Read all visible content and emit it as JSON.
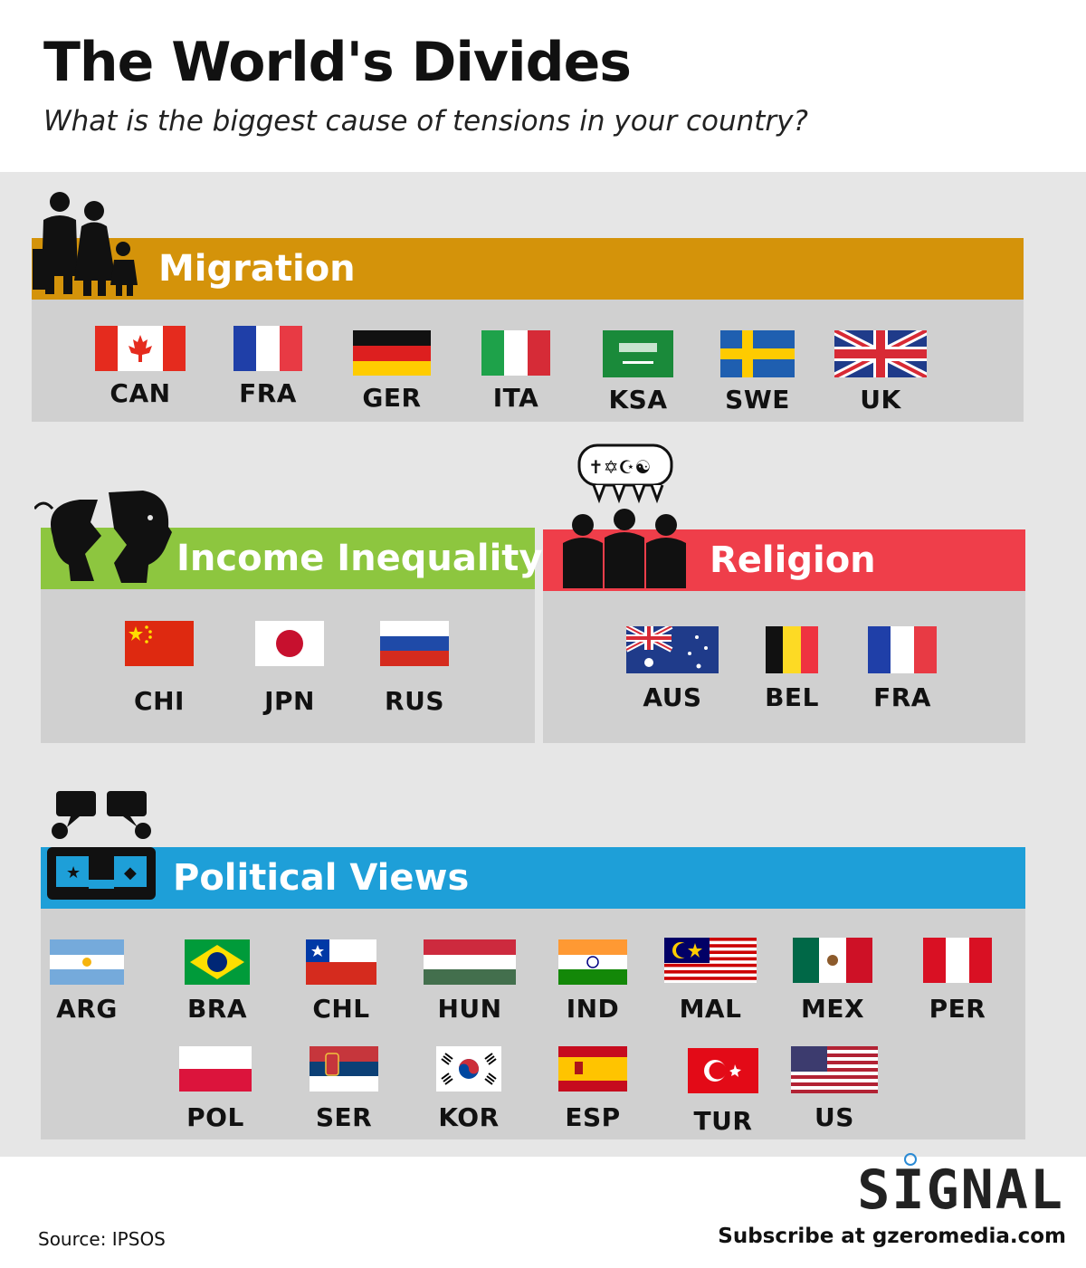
{
  "title": "The World's Divides",
  "subtitle": "What is the biggest cause of tensions in your country?",
  "sections": {
    "migration": {
      "label": "Migration",
      "color": "#d4930a",
      "icon": "family-icon",
      "countries": [
        "CAN",
        "FRA",
        "GER",
        "ITA",
        "KSA",
        "SWE",
        "UK"
      ]
    },
    "income": {
      "label": "Income Inequality",
      "color": "#8dc63f",
      "icon": "broken-piggy-bank-icon",
      "countries": [
        "CHI",
        "JPN",
        "RUS"
      ]
    },
    "religion": {
      "label": "Religion",
      "color": "#ef3e4a",
      "icon": "people-religion-icon",
      "countries": [
        "AUS",
        "BEL",
        "FRA"
      ]
    },
    "political": {
      "label": "Political Views",
      "color": "#1e9fd8",
      "icon": "debate-icon",
      "countries_row1": [
        "ARG",
        "BRA",
        "CHL",
        "HUN",
        "IND",
        "MAL",
        "MEX",
        "PER"
      ],
      "countries_row2": [
        "POL",
        "SER",
        "KOR",
        "ESP",
        "TUR",
        "US"
      ]
    }
  },
  "logo": "SIGNAL",
  "source": "Source: IPSOS",
  "subscribe": "Subscribe at gzeromedia.com"
}
